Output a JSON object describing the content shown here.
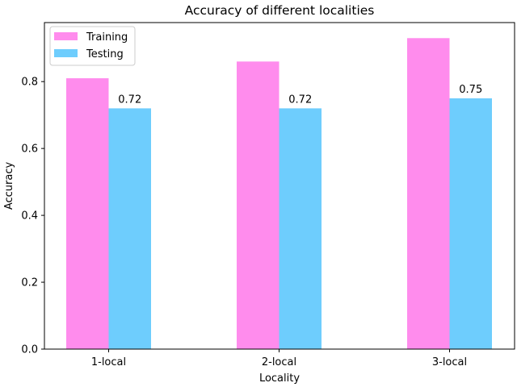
{
  "chart_data": {
    "type": "bar",
    "title": "Accuracy of different localities",
    "xlabel": "Locality",
    "ylabel": "Accuracy",
    "categories": [
      "1-local",
      "2-local",
      "3-local"
    ],
    "series": [
      {
        "name": "Training",
        "values": [
          0.81,
          0.86,
          0.93
        ],
        "color": "#ff8ced"
      },
      {
        "name": "Testing",
        "values": [
          0.72,
          0.72,
          0.75
        ],
        "color": "#6ecdfd"
      }
    ],
    "data_labels": [
      {
        "series": "Testing",
        "category": "1-local",
        "value": 0.72,
        "text": "0.72"
      },
      {
        "series": "Testing",
        "category": "2-local",
        "value": 0.72,
        "text": "0.72"
      },
      {
        "series": "Testing",
        "category": "3-local",
        "value": 0.75,
        "text": "0.75"
      }
    ],
    "y_ticks": [
      0.0,
      0.2,
      0.4,
      0.6,
      0.8
    ],
    "y_tick_labels": [
      "0.0",
      "0.2",
      "0.4",
      "0.6",
      "0.8"
    ],
    "ylim": [
      0,
      0.9765
    ],
    "grid": false,
    "legend_position": "top-left"
  }
}
